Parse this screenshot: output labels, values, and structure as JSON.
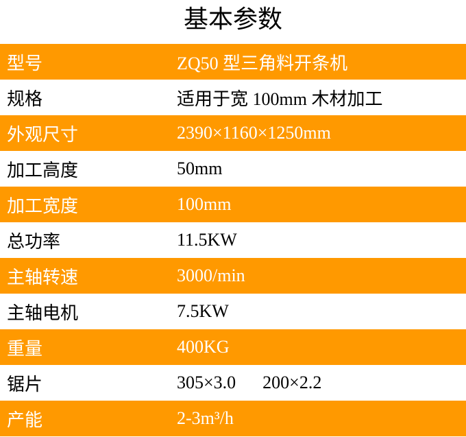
{
  "title": "基本参数",
  "colors": {
    "stripe": "#FF9900",
    "stripe_text": "#FFFFFF",
    "plain_text": "#000000"
  },
  "rows": [
    {
      "label": "型号",
      "value": "ZQ50 型三角料开条机"
    },
    {
      "label": "规格",
      "value": "适用于宽 100mm 木材加工"
    },
    {
      "label": "外观尺寸",
      "value": "2390×1160×1250mm"
    },
    {
      "label": "加工高度",
      "value": "50mm"
    },
    {
      "label": "加工宽度",
      "value": "100mm"
    },
    {
      "label": "总功率",
      "value": "11.5KW"
    },
    {
      "label": "主轴转速",
      "value": "3000/min"
    },
    {
      "label": "主轴电机",
      "value": "7.5KW"
    },
    {
      "label": "重量",
      "value": "400KG"
    },
    {
      "label": "锯片",
      "value": "305×3.0      200×2.2"
    },
    {
      "label": "产能",
      "value": "2-3m³/h"
    }
  ]
}
